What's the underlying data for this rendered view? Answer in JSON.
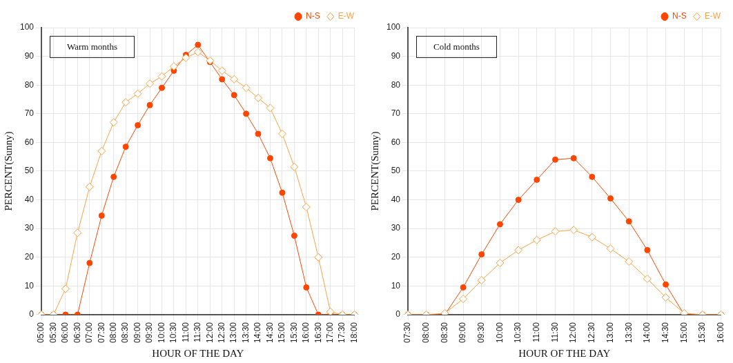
{
  "chart_data": [
    {
      "type": "line",
      "annotations": [
        "Warm months"
      ],
      "xlabel": "HOUR OF THE DAY",
      "ylabel": "PERCENT(Sunny)",
      "categories": [
        "05:00",
        "05:30",
        "06:00",
        "06:30",
        "07:00",
        "07:30",
        "08:00",
        "08:30",
        "09:00",
        "09:30",
        "10:00",
        "10:30",
        "11:00",
        "11:30",
        "12:00",
        "12:30",
        "13:00",
        "13:30",
        "14:00",
        "14:30",
        "15:00",
        "15:30",
        "16:00",
        "16:30",
        "17:00",
        "17:30",
        "18:00"
      ],
      "series": [
        {
          "name": "N-S",
          "color": "#ff4500",
          "marker": "circle",
          "values": [
            0,
            0,
            0,
            0,
            18,
            34.5,
            48,
            58.5,
            66,
            73,
            79,
            85,
            90.5,
            94,
            88,
            82,
            76.5,
            70,
            63,
            54.5,
            42.5,
            27.5,
            9.5,
            0,
            0,
            0,
            0
          ]
        },
        {
          "name": "E-W",
          "color": "#ffa040",
          "marker": "diamond",
          "values": [
            0,
            0,
            9,
            28.5,
            44.5,
            57,
            67,
            74,
            77,
            80.5,
            83,
            86.5,
            89.5,
            91.5,
            88.5,
            85,
            82,
            79,
            75.5,
            72,
            63,
            51.5,
            37.5,
            20,
            1,
            0,
            0
          ]
        }
      ],
      "ylim": [
        0,
        100
      ],
      "yticks": [
        0,
        10,
        20,
        30,
        40,
        50,
        60,
        70,
        80,
        90,
        100
      ],
      "grid": true,
      "legend": "top right"
    },
    {
      "type": "line",
      "annotations": [
        "Cold months"
      ],
      "xlabel": "HOUR OF THE DAY",
      "ylabel": "PERCENT(Sunny)",
      "categories": [
        "07:30",
        "08:00",
        "08:30",
        "09:00",
        "09:30",
        "10:00",
        "10:30",
        "11:00",
        "11:30",
        "12:00",
        "12:30",
        "13:00",
        "13:30",
        "14:00",
        "14:30",
        "15:00",
        "15:30",
        "16:00"
      ],
      "series": [
        {
          "name": "N-S",
          "color": "#ff4500",
          "marker": "circle",
          "values": [
            0,
            0,
            0,
            9.5,
            21,
            31.5,
            40,
            47,
            54,
            54.5,
            48,
            40.5,
            32.5,
            22.5,
            10.5,
            0,
            0,
            0
          ]
        },
        {
          "name": "E-W",
          "color": "#ffa040",
          "marker": "diamond",
          "values": [
            0,
            0,
            0.5,
            5.5,
            12,
            18,
            22.5,
            26,
            29,
            29.5,
            27,
            23,
            18.5,
            12.5,
            6,
            0.5,
            0,
            0
          ]
        }
      ],
      "ylim": [
        0,
        100
      ],
      "yticks": [
        0,
        10,
        20,
        30,
        40,
        50,
        60,
        70,
        80,
        90,
        100
      ],
      "grid": true,
      "legend": "top right"
    }
  ]
}
